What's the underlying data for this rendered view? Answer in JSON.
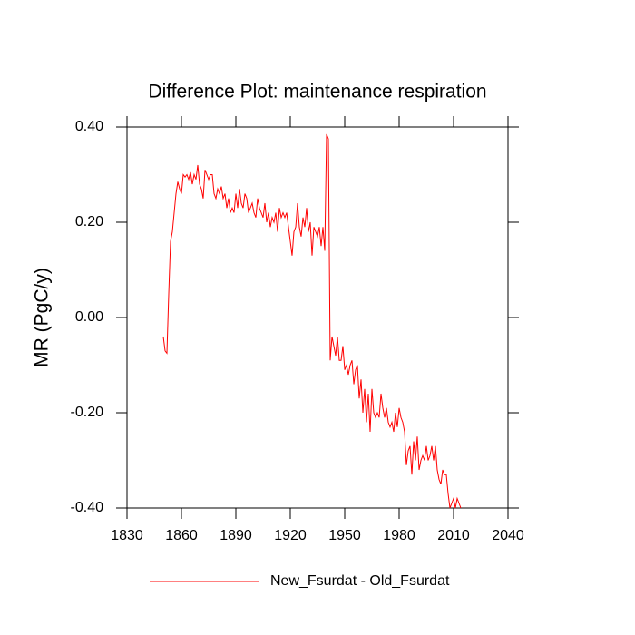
{
  "chart_data": {
    "type": "line",
    "title": "Difference Plot: maintenance respiration",
    "y_label": "MR  (PgC/y)",
    "xlim": [
      1830,
      2040
    ],
    "xticks": [
      1830,
      1860,
      1890,
      1920,
      1950,
      1980,
      2010,
      2040
    ],
    "ylim": [
      -0.4,
      0.4
    ],
    "yticks": [
      {
        "value": -0.4,
        "label": "-0.40"
      },
      {
        "value": -0.2,
        "label": "-0.20"
      },
      {
        "value": 0,
        "label": "0.00"
      },
      {
        "value": 0.2,
        "label": "0.20"
      },
      {
        "value": 0.4,
        "label": "0.40"
      }
    ],
    "x": [
      1850,
      1851,
      1852,
      1853,
      1854,
      1855,
      1856,
      1857,
      1858,
      1859,
      1860,
      1861,
      1862,
      1863,
      1864,
      1865,
      1866,
      1867,
      1868,
      1869,
      1870,
      1871,
      1872,
      1873,
      1874,
      1875,
      1876,
      1877,
      1878,
      1879,
      1880,
      1881,
      1882,
      1883,
      1884,
      1885,
      1886,
      1887,
      1888,
      1889,
      1890,
      1891,
      1892,
      1893,
      1894,
      1895,
      1896,
      1897,
      1898,
      1899,
      1900,
      1901,
      1902,
      1903,
      1904,
      1905,
      1906,
      1907,
      1908,
      1909,
      1910,
      1911,
      1912,
      1913,
      1914,
      1915,
      1916,
      1917,
      1918,
      1919,
      1920,
      1921,
      1922,
      1923,
      1924,
      1925,
      1926,
      1927,
      1928,
      1929,
      1930,
      1931,
      1932,
      1933,
      1934,
      1935,
      1936,
      1937,
      1938,
      1939,
      1940,
      1941,
      1942,
      1943,
      1944,
      1945,
      1946,
      1947,
      1948,
      1949,
      1950,
      1951,
      1952,
      1953,
      1954,
      1955,
      1956,
      1957,
      1958,
      1959,
      1960,
      1961,
      1962,
      1963,
      1964,
      1965,
      1966,
      1967,
      1968,
      1969,
      1970,
      1971,
      1972,
      1973,
      1974,
      1975,
      1976,
      1977,
      1978,
      1979,
      1980,
      1981,
      1982,
      1983,
      1984,
      1985,
      1986,
      1987,
      1988,
      1989,
      1990,
      1991,
      1992,
      1993,
      1994,
      1995,
      1996,
      1997,
      1998,
      1999,
      2000,
      2001,
      2002,
      2003,
      2004,
      2005,
      2006,
      2007,
      2008,
      2009,
      2010,
      2011,
      2012,
      2013,
      2014
    ],
    "series": [
      {
        "name": "New_Fsurdat - Old_Fsurdat",
        "color": "#ff0000",
        "values": [
          -0.04,
          -0.07,
          -0.075,
          0.05,
          0.16,
          0.18,
          0.22,
          0.26,
          0.285,
          0.27,
          0.26,
          0.3,
          0.295,
          0.3,
          0.29,
          0.305,
          0.28,
          0.3,
          0.29,
          0.32,
          0.28,
          0.27,
          0.25,
          0.31,
          0.3,
          0.29,
          0.3,
          0.3,
          0.26,
          0.25,
          0.27,
          0.26,
          0.275,
          0.25,
          0.26,
          0.23,
          0.25,
          0.22,
          0.23,
          0.22,
          0.26,
          0.23,
          0.27,
          0.24,
          0.23,
          0.26,
          0.25,
          0.22,
          0.23,
          0.24,
          0.22,
          0.21,
          0.25,
          0.23,
          0.22,
          0.21,
          0.24,
          0.2,
          0.22,
          0.19,
          0.21,
          0.2,
          0.22,
          0.18,
          0.23,
          0.21,
          0.22,
          0.21,
          0.22,
          0.19,
          0.16,
          0.13,
          0.18,
          0.19,
          0.24,
          0.19,
          0.17,
          0.21,
          0.19,
          0.23,
          0.18,
          0.2,
          0.13,
          0.19,
          0.18,
          0.17,
          0.19,
          0.15,
          0.19,
          0.14,
          0.385,
          0.375,
          -0.09,
          -0.04,
          -0.06,
          -0.08,
          -0.04,
          -0.09,
          -0.09,
          -0.06,
          -0.11,
          -0.1,
          -0.12,
          -0.1,
          -0.09,
          -0.14,
          -0.11,
          -0.1,
          -0.17,
          -0.13,
          -0.2,
          -0.15,
          -0.22,
          -0.16,
          -0.24,
          -0.15,
          -0.2,
          -0.21,
          -0.2,
          -0.21,
          -0.16,
          -0.19,
          -0.21,
          -0.19,
          -0.22,
          -0.23,
          -0.22,
          -0.24,
          -0.2,
          -0.23,
          -0.19,
          -0.21,
          -0.22,
          -0.24,
          -0.31,
          -0.28,
          -0.27,
          -0.33,
          -0.26,
          -0.3,
          -0.25,
          -0.32,
          -0.3,
          -0.29,
          -0.3,
          -0.27,
          -0.3,
          -0.29,
          -0.27,
          -0.3,
          -0.27,
          -0.32,
          -0.34,
          -0.35,
          -0.32,
          -0.33,
          -0.33,
          -0.37,
          -0.4,
          -0.39,
          -0.38,
          -0.4,
          -0.38,
          -0.39,
          -0.4
        ]
      }
    ]
  }
}
